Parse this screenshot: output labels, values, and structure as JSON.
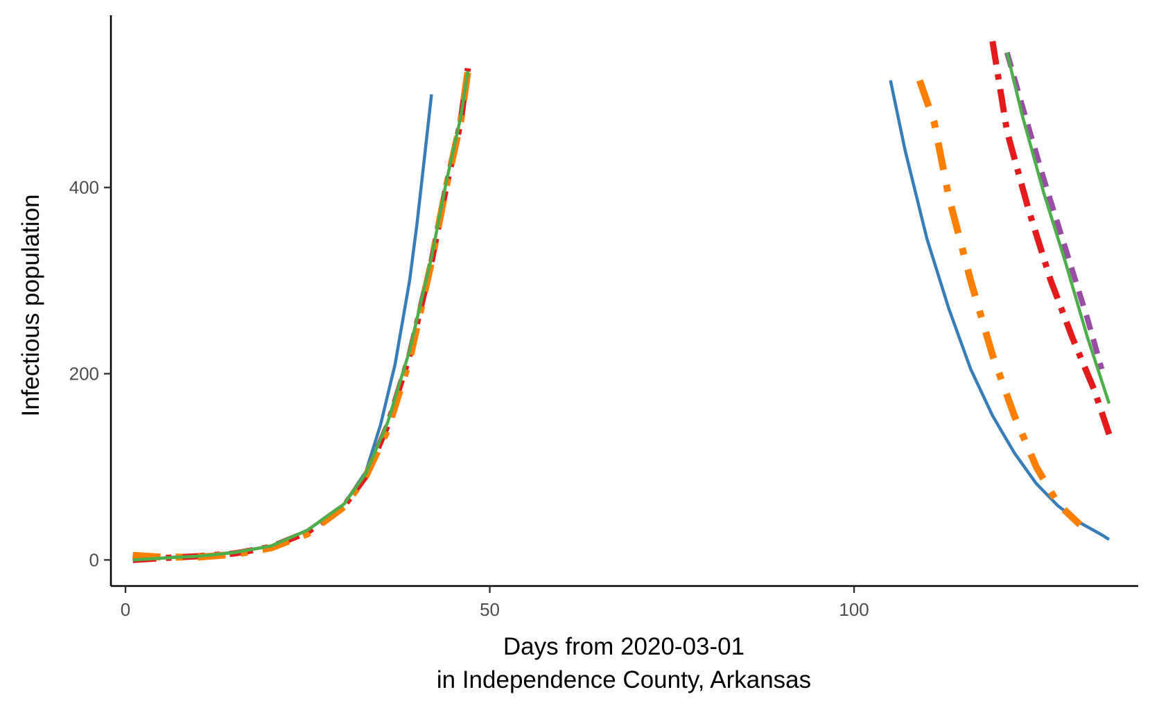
{
  "chart_data": {
    "type": "line",
    "title": "",
    "xlabel_lines": [
      "Days from 2020-03-01",
      "in Independence County, Arkansas"
    ],
    "ylabel": "Infectious population",
    "xlim": [
      -2,
      139
    ],
    "ylim": [
      -28,
      585
    ],
    "x_ticks": [
      0,
      50,
      100
    ],
    "y_ticks": [
      0,
      200,
      400
    ],
    "grid": false,
    "legend": "none",
    "series": [
      {
        "color": "#377eb8",
        "dash": "solid",
        "points": [
          [
            1,
            0
          ],
          [
            5,
            2
          ],
          [
            10,
            5
          ],
          [
            15,
            8
          ],
          [
            20,
            15
          ],
          [
            25,
            32
          ],
          [
            30,
            60
          ],
          [
            33,
            95
          ],
          [
            35,
            145
          ],
          [
            37,
            210
          ],
          [
            39,
            300
          ],
          [
            40,
            360
          ],
          [
            41,
            430
          ],
          [
            42,
            500
          ],
          [
            105,
            515
          ],
          [
            107,
            440
          ],
          [
            110,
            345
          ],
          [
            113,
            270
          ],
          [
            116,
            205
          ],
          [
            119,
            155
          ],
          [
            122,
            115
          ],
          [
            125,
            82
          ],
          [
            128,
            58
          ],
          [
            131,
            40
          ],
          [
            134,
            27
          ],
          [
            135,
            22
          ]
        ]
      },
      {
        "color": "#e41a1c",
        "dash": "dashdot",
        "points": [
          [
            1,
            0
          ],
          [
            5,
            2
          ],
          [
            10,
            4
          ],
          [
            15,
            7
          ],
          [
            20,
            14
          ],
          [
            25,
            30
          ],
          [
            30,
            58
          ],
          [
            33,
            90
          ],
          [
            36,
            145
          ],
          [
            39,
            220
          ],
          [
            42,
            320
          ],
          [
            44,
            400
          ],
          [
            46,
            470
          ],
          [
            47,
            528
          ],
          [
            119,
            557
          ],
          [
            121,
            460
          ],
          [
            124,
            375
          ],
          [
            127,
            300
          ],
          [
            130,
            238
          ],
          [
            133,
            182
          ],
          [
            135,
            135
          ]
        ]
      },
      {
        "color": "#984ea3",
        "dash": "dashed",
        "points": [
          [
            121,
            545
          ],
          [
            123,
            490
          ],
          [
            126,
            410
          ],
          [
            129,
            335
          ],
          [
            132,
            260
          ],
          [
            134,
            205
          ]
        ]
      },
      {
        "color": "#ff7f00",
        "dash": "dashdot-thick",
        "points": [
          [
            1,
            5
          ],
          [
            5,
            3
          ],
          [
            10,
            3
          ],
          [
            15,
            6
          ],
          [
            20,
            13
          ],
          [
            25,
            28
          ],
          [
            30,
            57
          ],
          [
            33,
            90
          ],
          [
            36,
            140
          ],
          [
            39,
            215
          ],
          [
            42,
            320
          ],
          [
            44,
            400
          ],
          [
            46,
            470
          ],
          [
            47,
            525
          ],
          [
            109,
            515
          ],
          [
            111,
            470
          ],
          [
            113,
            390
          ],
          [
            116,
            300
          ],
          [
            119,
            220
          ],
          [
            122,
            155
          ],
          [
            125,
            100
          ],
          [
            128,
            60
          ],
          [
            131,
            38
          ]
        ]
      },
      {
        "color": "#4daf4a",
        "dash": "solid",
        "points": [
          [
            1,
            0
          ],
          [
            5,
            2
          ],
          [
            10,
            4
          ],
          [
            15,
            8
          ],
          [
            20,
            15
          ],
          [
            25,
            32
          ],
          [
            30,
            60
          ],
          [
            33,
            93
          ],
          [
            36,
            148
          ],
          [
            39,
            225
          ],
          [
            42,
            325
          ],
          [
            44,
            405
          ],
          [
            46,
            475
          ],
          [
            47,
            525
          ],
          [
            121,
            545
          ],
          [
            123,
            480
          ],
          [
            126,
            395
          ],
          [
            129,
            320
          ],
          [
            132,
            240
          ],
          [
            135,
            168
          ]
        ]
      }
    ]
  }
}
